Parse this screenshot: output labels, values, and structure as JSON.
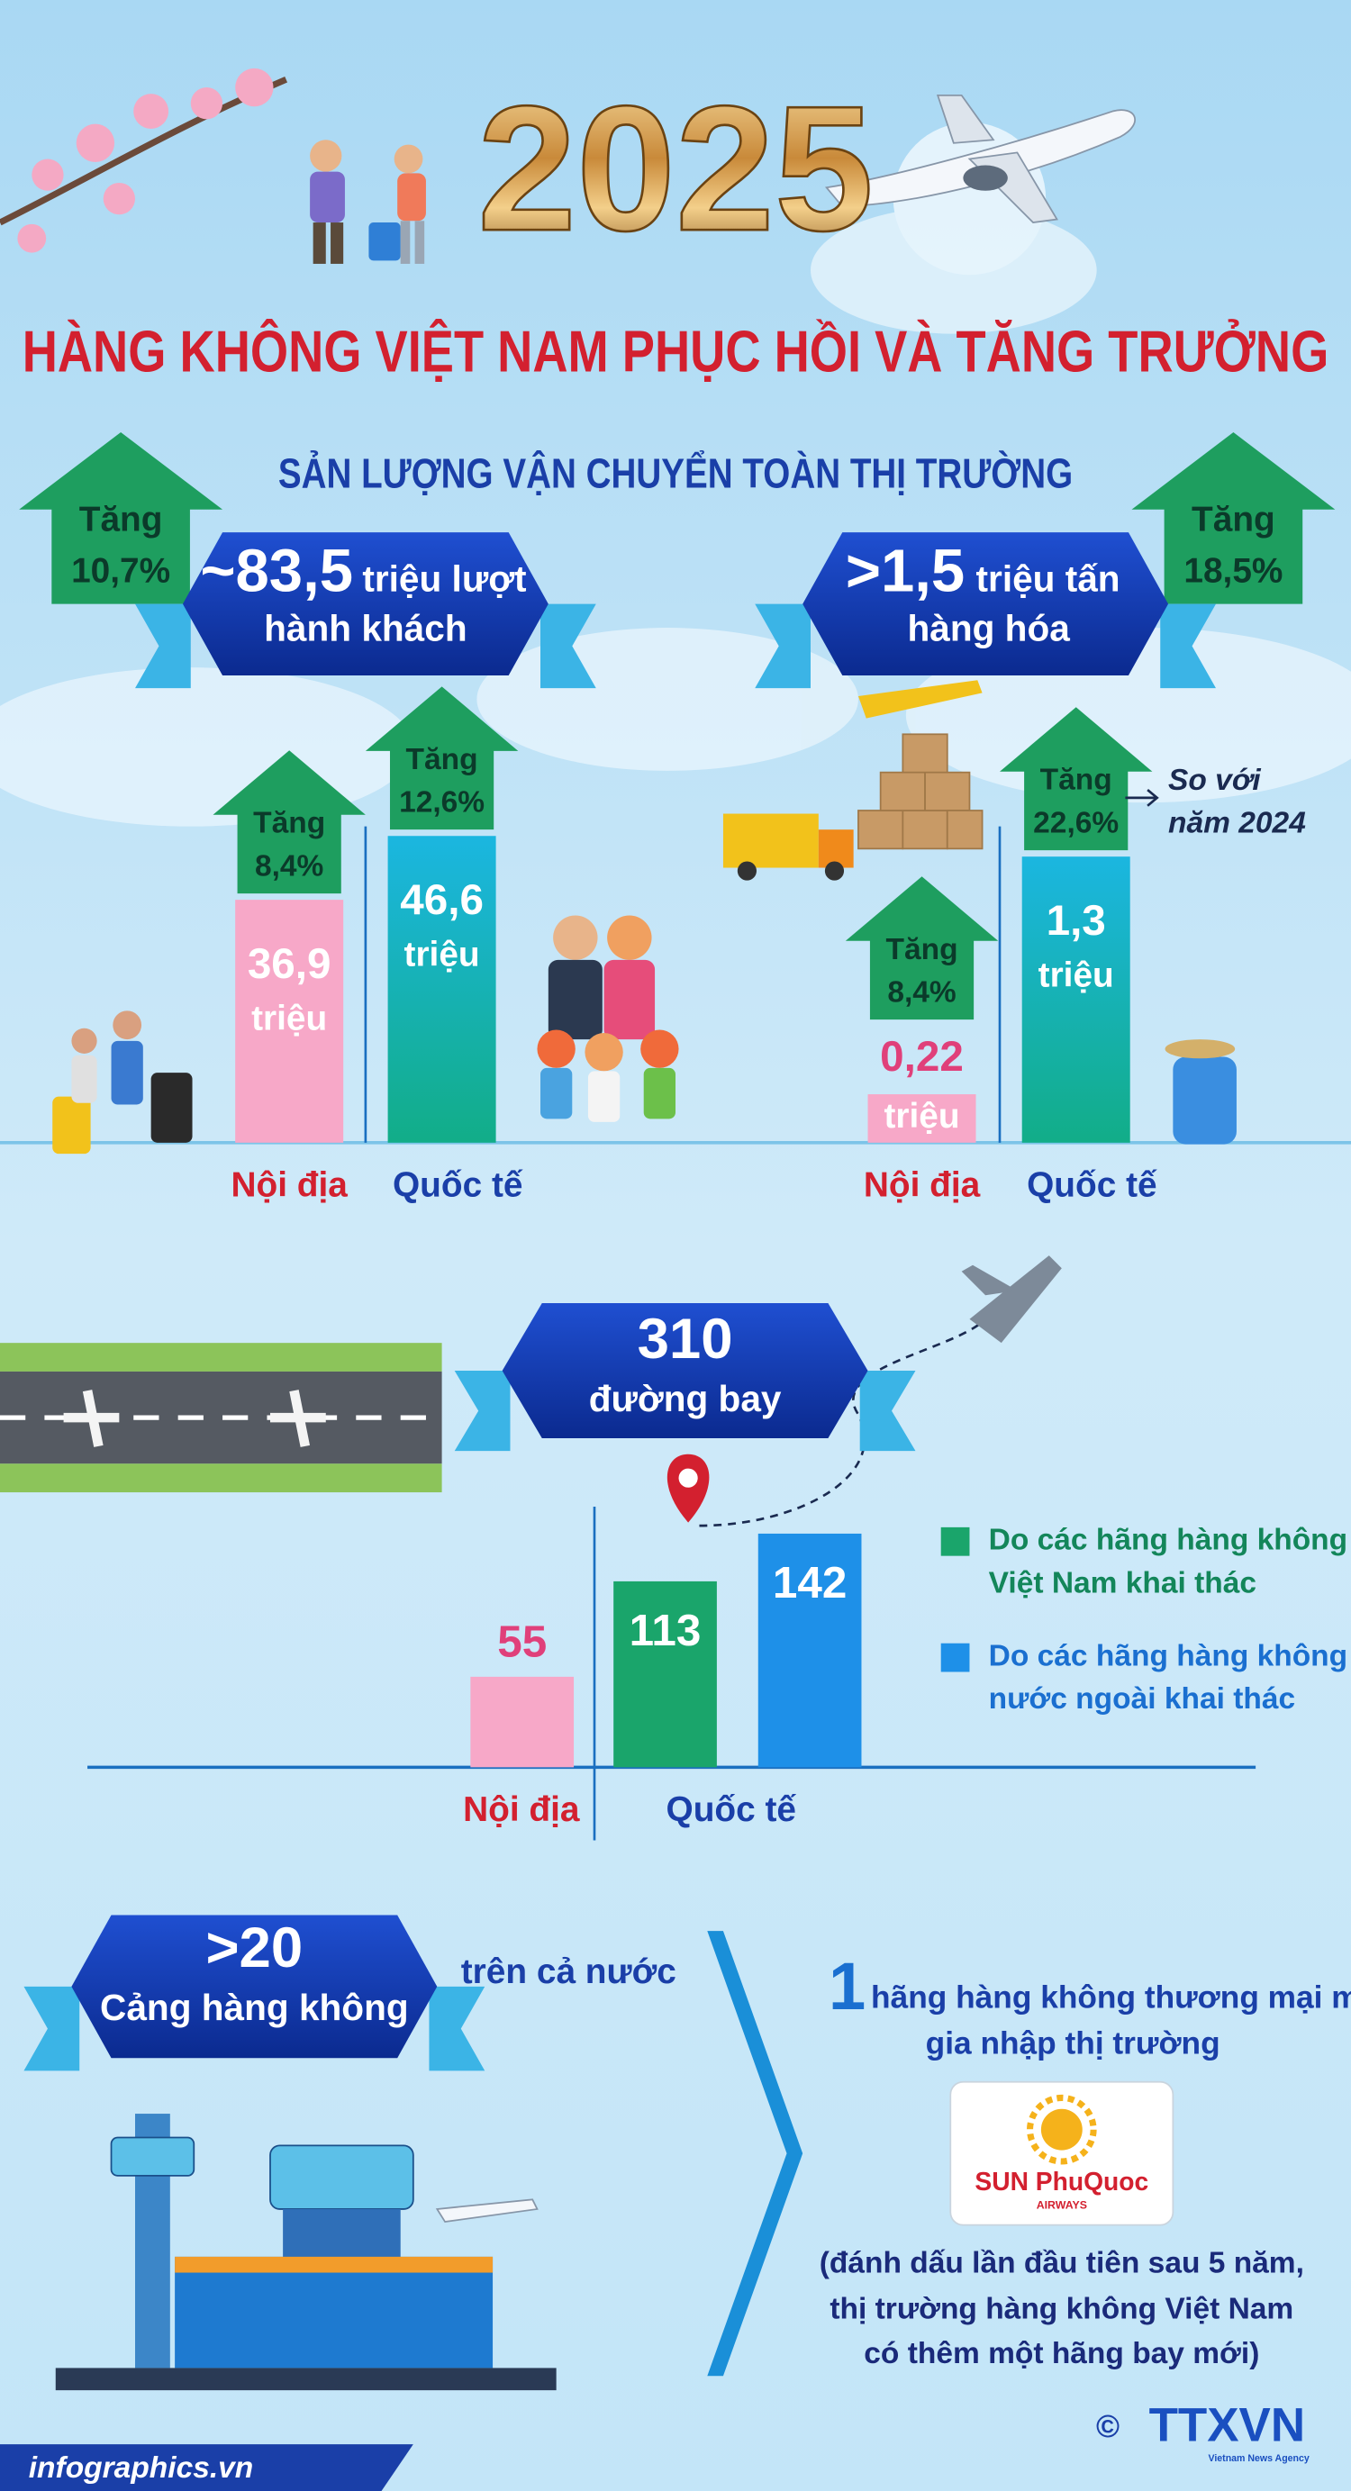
{
  "year": "2025",
  "title": "HÀNG KHÔNG VIỆT NAM PHỤC HỒI VÀ TĂNG TRƯỞNG",
  "subtitle": "SẢN LƯỢNG VẬN CHUYỂN TOÀN THỊ TRƯỜNG",
  "passengers": {
    "total": "~83,5",
    "unit": "triệu lượt",
    "unit2": "hành khách",
    "growth_label": "Tăng",
    "growth": "10,7%",
    "bars": [
      {
        "name": "Nội địa",
        "value": 36.9,
        "value_label": "36,9",
        "unit": "triệu",
        "growth_label": "Tăng",
        "growth": "8,4%",
        "color": "#f7a8c8"
      },
      {
        "name": "Quốc tế",
        "value": 46.6,
        "value_label": "46,6",
        "unit": "triệu",
        "growth_label": "Tăng",
        "growth": "12,6%",
        "color": "#14aa9a"
      }
    ]
  },
  "cargo": {
    "total": ">1,5",
    "unit": "triệu tấn",
    "unit2": "hàng hóa",
    "growth_label": "Tăng",
    "growth": "18,5%",
    "bars": [
      {
        "name": "Nội địa",
        "value": 0.22,
        "value_label": "0,22",
        "unit": "triệu",
        "growth_label": "Tăng",
        "growth": "8,4%",
        "color": "#f7a8c8"
      },
      {
        "name": "Quốc tế",
        "value": 1.3,
        "value_label": "1,3",
        "unit": "triệu",
        "growth_label": "Tăng",
        "growth": "22,6%",
        "color": "#14aa9a"
      }
    ],
    "note": [
      "So với",
      "năm 2024"
    ]
  },
  "routes": {
    "total": "310",
    "unit": "đường bay",
    "categories": [
      "Nội địa",
      "Quốc tế"
    ],
    "bars": [
      {
        "value": 55,
        "color": "#f7a8c8"
      },
      {
        "value": 113,
        "color": "#1aa56b"
      },
      {
        "value": 142,
        "color": "#1e90e8"
      }
    ],
    "legend": [
      {
        "lines": [
          "Do các hãng hàng không",
          "Việt Nam khai thác"
        ],
        "color": "#1aa56b"
      },
      {
        "lines": [
          "Do các hãng hàng không",
          "nước ngoài khai thác"
        ],
        "color": "#1e90e8"
      }
    ]
  },
  "airports": {
    "total": ">20",
    "unit": "Cảng hàng không",
    "note": "trên cả nước"
  },
  "airline": {
    "count": "1",
    "text": "hãng hàng không thương mại mới",
    "text2": "gia nhập thị trường",
    "logo": "SUN PhuQuoc",
    "logo_sub": "AIRWAYS",
    "note": [
      "(đánh dấu lần đầu tiên sau 5 năm,",
      "thị trường hàng không Việt Nam",
      "có thêm một hãng bay mới)"
    ]
  },
  "footer": {
    "source": "infographics.vn",
    "copyright": "©",
    "agency": "TTXVN",
    "agency_sub": "Vietnam News Agency"
  }
}
